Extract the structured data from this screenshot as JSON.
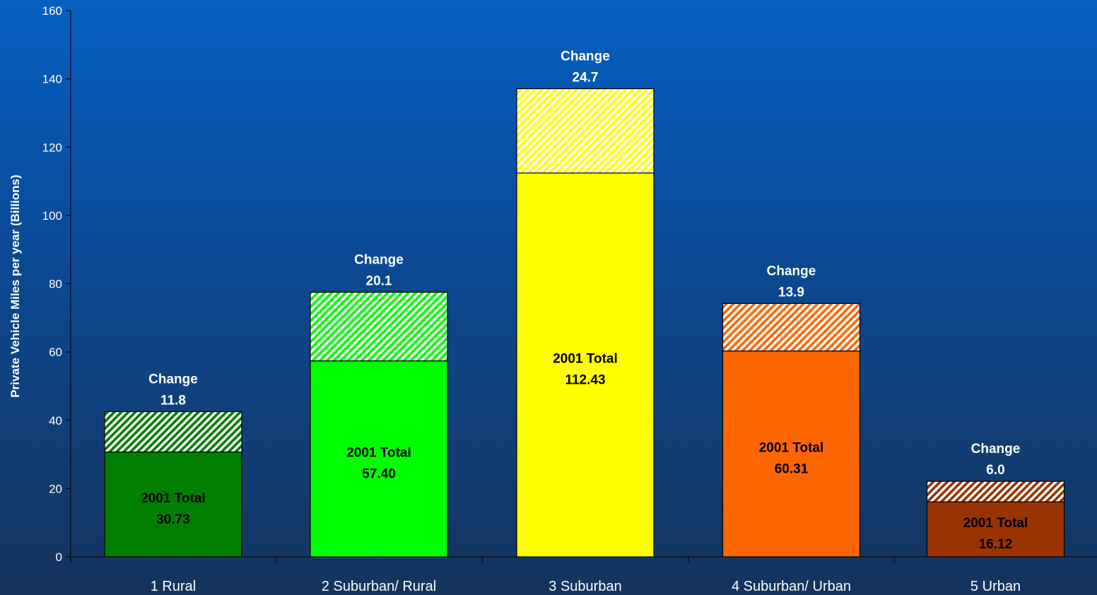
{
  "chart_data": {
    "type": "bar",
    "stacked": true,
    "title": "",
    "xlabel": "",
    "ylabel": "Private Vehicle Miles per year (Billions)",
    "ylim": [
      0,
      160
    ],
    "yticks": [
      0,
      20,
      40,
      60,
      80,
      100,
      120,
      140,
      160
    ],
    "grid": false,
    "categories": [
      "1 Rural",
      "2 Suburban/ Rural",
      "3 Suburban",
      "4 Suburban/ Urban",
      "5 Urban"
    ],
    "series": [
      {
        "values": [
          30.73,
          57.4,
          112.43,
          60.31,
          16.12
        ],
        "label_title": "2001 Total",
        "labels": [
          "30.73",
          "57.40",
          "112.43",
          "60.31",
          "16.12"
        ],
        "colors": [
          "#007f00",
          "#00ff00",
          "#ffff00",
          "#ff6600",
          "#993300"
        ]
      },
      {
        "values": [
          11.8,
          20.1,
          24.7,
          13.9,
          6.0
        ],
        "label_title": "Change",
        "labels": [
          "11.8",
          "20.1",
          "24.7",
          "13.9",
          "6.0"
        ],
        "fill": "hatched",
        "colors": [
          "#007f00",
          "#00ff00",
          "#ffff00",
          "#ff6600",
          "#993300"
        ]
      }
    ]
  }
}
